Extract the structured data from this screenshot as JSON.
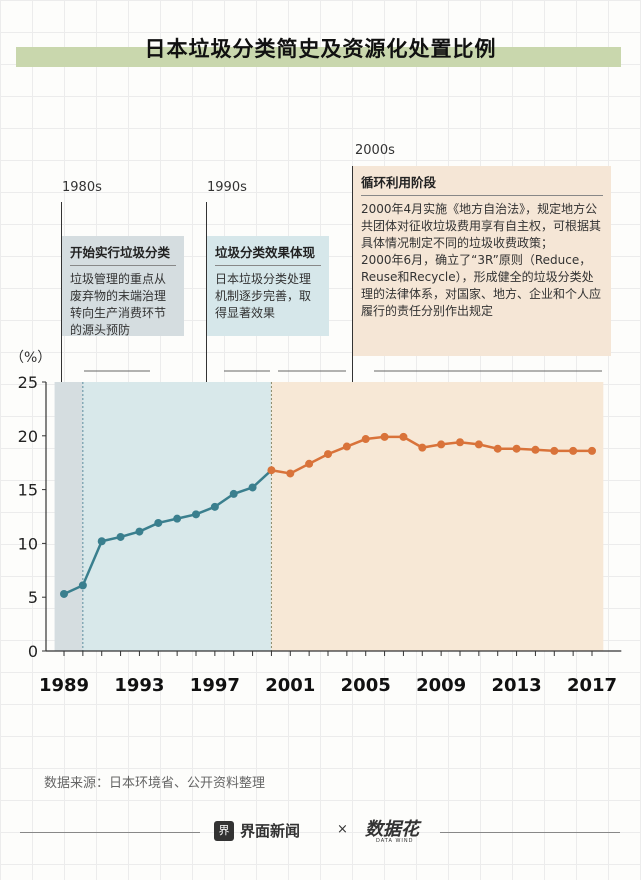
{
  "title": "日本垃圾分类简史及资源化处置比例",
  "eras": [
    {
      "label": "1980s",
      "box_title": "开始实行垃圾分类",
      "box_text": "垃圾管理的重点从废弃物的末端治理转向生产消费环节的源头预防"
    },
    {
      "label": "1990s",
      "box_title": "垃圾分类效果体现",
      "box_text": "日本垃圾分类处理机制逐步完善，取得显著效果"
    },
    {
      "label": "2000s",
      "box_title": "循环利用阶段",
      "box_text": "2000年4月实施《地方自治法》，规定地方公共团体对征收垃圾费用享有自主权，可根据其具体情况制定不同的垃圾收费政策；\n2000年6月，确立了“3R”原则（Reduce，Reuse和Recycle），形成健全的垃圾分类处理的法律体系，对国家、地方、企业和个人应履行的责任分别作出规定"
    }
  ],
  "colors": {
    "period1": "#3a7f8e",
    "period2": "#d9733a",
    "shade1": "#d8e8ea",
    "shade0": "#d5dde0",
    "shade2": "#f7e8d6"
  },
  "chart_data": {
    "type": "line",
    "x": [
      1989,
      1990,
      1991,
      1992,
      1993,
      1994,
      1995,
      1996,
      1997,
      1998,
      1999,
      2000,
      2001,
      2002,
      2003,
      2004,
      2005,
      2006,
      2007,
      2008,
      2009,
      2010,
      2011,
      2012,
      2013,
      2014,
      2015,
      2016,
      2017
    ],
    "y": [
      5.3,
      6.1,
      10.2,
      10.6,
      11.1,
      11.9,
      12.3,
      12.7,
      13.4,
      14.6,
      15.2,
      16.8,
      16.5,
      17.4,
      18.3,
      19.0,
      19.7,
      19.9,
      19.9,
      18.9,
      19.2,
      19.4,
      19.2,
      18.8,
      18.8,
      18.7,
      18.6,
      18.6,
      18.6
    ],
    "ylabel": "（%）",
    "ylim": [
      0,
      25
    ],
    "xlim": [
      1988.5,
      2017.6
    ],
    "yticks": [
      0,
      5,
      10,
      15,
      20,
      25
    ],
    "xticks": [
      1989,
      1993,
      1997,
      2001,
      2005,
      2009,
      2013,
      2017
    ],
    "split_year": 2000,
    "grid": false
  },
  "footer": {
    "source": "数据来源：日本环境省、公开资料整理",
    "brand1": "界面新闻",
    "times": "×",
    "brand2": "数据花",
    "brand2_sub": "DATA WIND",
    "logo_glyph": "界"
  }
}
